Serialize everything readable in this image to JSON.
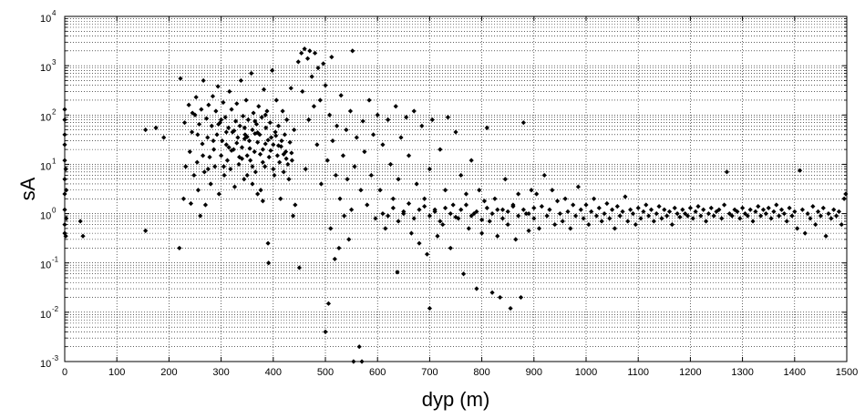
{
  "chart_data": {
    "type": "scatter",
    "title": "",
    "xlabel": "dyp (m)",
    "ylabel": "sA",
    "xlim": [
      0,
      1500
    ],
    "ylim": [
      0.001,
      10000
    ],
    "yscale": "log",
    "grid": "on (dotted, with log minor lines)",
    "marker": "black diamonds",
    "color": "#000000",
    "x_ticks": [
      "0",
      "100",
      "200",
      "300",
      "400",
      "500",
      "600",
      "700",
      "800",
      "900",
      "1000",
      "1100",
      "1200",
      "1300",
      "1400",
      "1500"
    ],
    "y_ticks": [
      {
        "base": "10",
        "exp": "-3",
        "value": 0.001
      },
      {
        "base": "10",
        "exp": "-2",
        "value": 0.01
      },
      {
        "base": "10",
        "exp": "-1",
        "value": 0.1
      },
      {
        "base": "10",
        "exp": "0",
        "value": 1
      },
      {
        "base": "10",
        "exp": "1",
        "value": 10
      },
      {
        "base": "10",
        "exp": "2",
        "value": 100
      },
      {
        "base": "10",
        "exp": "3",
        "value": 1000
      },
      {
        "base": "10",
        "exp": "4",
        "value": 10000
      }
    ],
    "points": [
      [
        0,
        0.4
      ],
      [
        0,
        0.6
      ],
      [
        0,
        1.2
      ],
      [
        0,
        2.5
      ],
      [
        0,
        5
      ],
      [
        0,
        12
      ],
      [
        0,
        25
      ],
      [
        0,
        40
      ],
      [
        0,
        80
      ],
      [
        0,
        130
      ],
      [
        2,
        0.35
      ],
      [
        3,
        0.8
      ],
      [
        3,
        3
      ],
      [
        2,
        8
      ],
      [
        30,
        0.7
      ],
      [
        35,
        0.35
      ],
      [
        155,
        50
      ],
      [
        175,
        55
      ],
      [
        155,
        0.45
      ],
      [
        190,
        35
      ],
      [
        220,
        0.2
      ],
      [
        222,
        550
      ],
      [
        228,
        2
      ],
      [
        230,
        70
      ],
      [
        232,
        9
      ],
      [
        238,
        160
      ],
      [
        240,
        18
      ],
      [
        242,
        1.6
      ],
      [
        244,
        45
      ],
      [
        248,
        6
      ],
      [
        250,
        100
      ],
      [
        252,
        230
      ],
      [
        254,
        11
      ],
      [
        256,
        3
      ],
      [
        258,
        65
      ],
      [
        260,
        0.9
      ],
      [
        262,
        130
      ],
      [
        264,
        26
      ],
      [
        266,
        500
      ],
      [
        268,
        7
      ],
      [
        270,
        1.5
      ],
      [
        272,
        85
      ],
      [
        274,
        35
      ],
      [
        276,
        160
      ],
      [
        278,
        14
      ],
      [
        280,
        4
      ],
      [
        282,
        60
      ],
      [
        284,
        240
      ],
      [
        286,
        20
      ],
      [
        288,
        9
      ],
      [
        290,
        120
      ],
      [
        292,
        40
      ],
      [
        294,
        380
      ],
      [
        296,
        2.5
      ],
      [
        298,
        70
      ],
      [
        300,
        15
      ],
      [
        302,
        30
      ],
      [
        304,
        180
      ],
      [
        306,
        6
      ],
      [
        308,
        90
      ],
      [
        310,
        25
      ],
      [
        312,
        12
      ],
      [
        314,
        55
      ],
      [
        316,
        300
      ],
      [
        318,
        8
      ],
      [
        320,
        130
      ],
      [
        322,
        45
      ],
      [
        324,
        20
      ],
      [
        326,
        3.5
      ],
      [
        328,
        75
      ],
      [
        330,
        170
      ],
      [
        332,
        35
      ],
      [
        334,
        10
      ],
      [
        336,
        60
      ],
      [
        338,
        500
      ],
      [
        340,
        22
      ],
      [
        342,
        95
      ],
      [
        344,
        5
      ],
      [
        346,
        40
      ],
      [
        348,
        200
      ],
      [
        350,
        15
      ],
      [
        352,
        80
      ],
      [
        354,
        30
      ],
      [
        356,
        12
      ],
      [
        358,
        700
      ],
      [
        360,
        50
      ],
      [
        362,
        110
      ],
      [
        364,
        18
      ],
      [
        366,
        7
      ],
      [
        368,
        65
      ],
      [
        370,
        28
      ],
      [
        372,
        150
      ],
      [
        374,
        40
      ],
      [
        376,
        3
      ],
      [
        378,
        90
      ],
      [
        380,
        20
      ],
      [
        382,
        330
      ],
      [
        384,
        9
      ],
      [
        386,
        55
      ],
      [
        388,
        120
      ],
      [
        390,
        0.25
      ],
      [
        391,
        0.1
      ],
      [
        392,
        14
      ],
      [
        394,
        70
      ],
      [
        396,
        35
      ],
      [
        398,
        800
      ],
      [
        400,
        25
      ],
      [
        402,
        6
      ],
      [
        404,
        45
      ],
      [
        406,
        200
      ],
      [
        408,
        15
      ],
      [
        410,
        60
      ],
      [
        412,
        11
      ],
      [
        414,
        2
      ],
      [
        416,
        30
      ],
      [
        418,
        120
      ],
      [
        420,
        7
      ],
      [
        422,
        40
      ],
      [
        424,
        18
      ],
      [
        426,
        80
      ],
      [
        428,
        10
      ],
      [
        430,
        5
      ],
      [
        432,
        28
      ],
      [
        434,
        350
      ],
      [
        436,
        12
      ],
      [
        438,
        0.9
      ],
      [
        440,
        50
      ],
      [
        442,
        1.5
      ],
      [
        245,
        110
      ],
      [
        255,
        40
      ],
      [
        265,
        15
      ],
      [
        275,
        8
      ],
      [
        285,
        30
      ],
      [
        295,
        65
      ],
      [
        305,
        9
      ],
      [
        315,
        22
      ],
      [
        325,
        48
      ],
      [
        335,
        14
      ],
      [
        345,
        33
      ],
      [
        355,
        21
      ],
      [
        365,
        42
      ],
      [
        375,
        16
      ],
      [
        385,
        26
      ],
      [
        395,
        19
      ],
      [
        405,
        38
      ],
      [
        415,
        23
      ],
      [
        425,
        13
      ],
      [
        435,
        17
      ],
      [
        300,
        80
      ],
      [
        310,
        45
      ],
      [
        320,
        19
      ],
      [
        330,
        27
      ],
      [
        340,
        13
      ],
      [
        350,
        36
      ],
      [
        360,
        9
      ],
      [
        370,
        44
      ],
      [
        380,
        11
      ],
      [
        390,
        31
      ],
      [
        400,
        8
      ],
      [
        410,
        24
      ],
      [
        420,
        16
      ],
      [
        350,
        6
      ],
      [
        360,
        4
      ],
      [
        370,
        2.5
      ],
      [
        380,
        1.8
      ],
      [
        345,
        55
      ],
      [
        365,
        75
      ],
      [
        385,
        100
      ],
      [
        448,
        1200
      ],
      [
        450,
        0.08
      ],
      [
        454,
        1800
      ],
      [
        456,
        300
      ],
      [
        460,
        2200
      ],
      [
        462,
        8
      ],
      [
        466,
        1400
      ],
      [
        468,
        80
      ],
      [
        470,
        2000
      ],
      [
        474,
        600
      ],
      [
        478,
        150
      ],
      [
        480,
        1800
      ],
      [
        484,
        25
      ],
      [
        486,
        900
      ],
      [
        490,
        200
      ],
      [
        492,
        4
      ],
      [
        496,
        1100
      ],
      [
        500,
        400
      ],
      [
        500,
        0.004
      ],
      [
        504,
        12
      ],
      [
        506,
        0.015
      ],
      [
        508,
        100
      ],
      [
        510,
        0.5
      ],
      [
        512,
        1500
      ],
      [
        514,
        30
      ],
      [
        518,
        0.12
      ],
      [
        520,
        6
      ],
      [
        522,
        60
      ],
      [
        526,
        0.2
      ],
      [
        528,
        2
      ],
      [
        530,
        250
      ],
      [
        534,
        15
      ],
      [
        536,
        0.9
      ],
      [
        540,
        50
      ],
      [
        542,
        5
      ],
      [
        545,
        0.3
      ],
      [
        548,
        120
      ],
      [
        550,
        1.2
      ],
      [
        552,
        2000
      ],
      [
        554,
        0.001
      ],
      [
        556,
        9
      ],
      [
        560,
        35
      ],
      [
        565,
        0.002
      ],
      [
        568,
        3
      ],
      [
        570,
        0.001
      ],
      [
        572,
        75
      ],
      [
        575,
        18
      ],
      [
        580,
        1.5
      ],
      [
        584,
        200
      ],
      [
        588,
        6
      ],
      [
        592,
        40
      ],
      [
        596,
        0.8
      ],
      [
        600,
        100
      ],
      [
        605,
        3
      ],
      [
        610,
        25
      ],
      [
        615,
        0.5
      ],
      [
        620,
        80
      ],
      [
        625,
        10
      ],
      [
        630,
        2
      ],
      [
        635,
        150
      ],
      [
        638,
        0.065
      ],
      [
        640,
        5
      ],
      [
        645,
        35
      ],
      [
        650,
        1
      ],
      [
        655,
        90
      ],
      [
        660,
        15
      ],
      [
        665,
        0.4
      ],
      [
        670,
        120
      ],
      [
        675,
        4
      ],
      [
        680,
        0.25
      ],
      [
        685,
        60
      ],
      [
        690,
        2
      ],
      [
        695,
        0.15
      ],
      [
        700,
        8
      ],
      [
        700,
        0.012
      ],
      [
        705,
        80
      ],
      [
        710,
        1.2
      ],
      [
        715,
        0.35
      ],
      [
        720,
        20
      ],
      [
        725,
        0.6
      ],
      [
        730,
        3
      ],
      [
        735,
        90
      ],
      [
        740,
        0.2
      ],
      [
        745,
        1.5
      ],
      [
        750,
        45
      ],
      [
        755,
        0.8
      ],
      [
        760,
        6
      ],
      [
        765,
        0.06
      ],
      [
        770,
        2.5
      ],
      [
        775,
        0.5
      ],
      [
        780,
        12
      ],
      [
        785,
        1
      ],
      [
        790,
        0.03
      ],
      [
        795,
        3
      ],
      [
        800,
        0.4
      ],
      [
        805,
        1.8
      ],
      [
        810,
        55
      ],
      [
        815,
        0.7
      ],
      [
        820,
        0.025
      ],
      [
        825,
        2
      ],
      [
        830,
        0.35
      ],
      [
        835,
        0.02
      ],
      [
        840,
        1.2
      ],
      [
        845,
        5
      ],
      [
        850,
        0.6
      ],
      [
        855,
        0.012
      ],
      [
        860,
        1.5
      ],
      [
        865,
        0.3
      ],
      [
        870,
        2.5
      ],
      [
        875,
        0.02
      ],
      [
        880,
        70
      ],
      [
        885,
        1
      ],
      [
        890,
        0.45
      ],
      [
        895,
        3
      ],
      [
        610,
        1
      ],
      [
        620,
        0.9
      ],
      [
        630,
        1.3
      ],
      [
        640,
        0.7
      ],
      [
        650,
        1.1
      ],
      [
        660,
        1.6
      ],
      [
        670,
        0.8
      ],
      [
        680,
        1.2
      ],
      [
        690,
        1.4
      ],
      [
        700,
        0.9
      ],
      [
        710,
        1.1
      ],
      [
        720,
        0.7
      ],
      [
        730,
        1.3
      ],
      [
        740,
        1
      ],
      [
        750,
        0.85
      ],
      [
        760,
        1.2
      ],
      [
        770,
        1.5
      ],
      [
        780,
        0.9
      ],
      [
        790,
        1.1
      ],
      [
        800,
        0.75
      ],
      [
        810,
        1.3
      ],
      [
        820,
        1
      ],
      [
        830,
        1.2
      ],
      [
        840,
        0.8
      ],
      [
        850,
        1.1
      ],
      [
        860,
        1.4
      ],
      [
        870,
        0.9
      ],
      [
        880,
        1.2
      ],
      [
        890,
        1
      ],
      [
        900,
        1.3
      ],
      [
        900,
        0.8
      ],
      [
        905,
        2.5
      ],
      [
        910,
        0.5
      ],
      [
        915,
        1.4
      ],
      [
        920,
        6
      ],
      [
        925,
        0.9
      ],
      [
        930,
        1.2
      ],
      [
        935,
        3
      ],
      [
        940,
        0.6
      ],
      [
        945,
        1.8
      ],
      [
        950,
        1
      ],
      [
        955,
        0.7
      ],
      [
        960,
        2
      ],
      [
        965,
        1.1
      ],
      [
        970,
        0.5
      ],
      [
        975,
        1.5
      ],
      [
        980,
        0.9
      ],
      [
        985,
        3.5
      ],
      [
        990,
        1.2
      ],
      [
        995,
        0.8
      ],
      [
        1000,
        1.5
      ],
      [
        1005,
        0.6
      ],
      [
        1010,
        1.1
      ],
      [
        1015,
        2
      ],
      [
        1020,
        0.9
      ],
      [
        1025,
        1.3
      ],
      [
        1030,
        0.7
      ],
      [
        1035,
        1
      ],
      [
        1040,
        1.6
      ],
      [
        1045,
        0.8
      ],
      [
        1050,
        1.2
      ],
      [
        1055,
        0.5
      ],
      [
        1060,
        1.4
      ],
      [
        1065,
        0.9
      ],
      [
        1070,
        1.1
      ],
      [
        1075,
        2.2
      ],
      [
        1080,
        0.7
      ],
      [
        1085,
        1.2
      ],
      [
        1090,
        1
      ],
      [
        1095,
        0.6
      ],
      [
        1100,
        1.3
      ],
      [
        1105,
        0.8
      ],
      [
        1110,
        1.1
      ],
      [
        1115,
        1.5
      ],
      [
        1120,
        0.9
      ],
      [
        1125,
        1.2
      ],
      [
        1130,
        0.7
      ],
      [
        1135,
        1
      ],
      [
        1140,
        1.4
      ],
      [
        1145,
        0.8
      ],
      [
        1150,
        1.2
      ],
      [
        1155,
        0.9
      ],
      [
        1160,
        1.1
      ],
      [
        1165,
        0.6
      ],
      [
        1170,
        1.3
      ],
      [
        1175,
        1
      ],
      [
        1180,
        0.85
      ],
      [
        1185,
        1.2
      ],
      [
        1190,
        1
      ],
      [
        1195,
        0.9
      ],
      [
        1200,
        1.3
      ],
      [
        1205,
        0.8
      ],
      [
        1210,
        1.1
      ],
      [
        1215,
        1.4
      ],
      [
        1220,
        0.9
      ],
      [
        1225,
        1.2
      ],
      [
        1230,
        0.7
      ],
      [
        1235,
        1
      ],
      [
        1240,
        1.3
      ],
      [
        1245,
        0.9
      ],
      [
        1250,
        1.1
      ],
      [
        1255,
        1.2
      ],
      [
        1260,
        0.8
      ],
      [
        1265,
        1.5
      ],
      [
        1270,
        7
      ],
      [
        1275,
        1
      ],
      [
        1280,
        0.9
      ],
      [
        1285,
        1.2
      ],
      [
        1290,
        1.1
      ],
      [
        1295,
        0.8
      ],
      [
        1300,
        1.3
      ],
      [
        1305,
        1
      ],
      [
        1310,
        0.9
      ],
      [
        1315,
        1.2
      ],
      [
        1320,
        0.7
      ],
      [
        1325,
        1.1
      ],
      [
        1330,
        1.4
      ],
      [
        1335,
        0.9
      ],
      [
        1340,
        1.2
      ],
      [
        1345,
        1
      ],
      [
        1350,
        1.3
      ],
      [
        1355,
        0.8
      ],
      [
        1360,
        1.1
      ],
      [
        1365,
        1.5
      ],
      [
        1370,
        0.9
      ],
      [
        1375,
        1.2
      ],
      [
        1380,
        1
      ],
      [
        1385,
        0.7
      ],
      [
        1390,
        1.3
      ],
      [
        1395,
        0.9
      ],
      [
        1400,
        1.1
      ],
      [
        1405,
        0.5
      ],
      [
        1410,
        7.5
      ],
      [
        1415,
        1.2
      ],
      [
        1420,
        0.4
      ],
      [
        1425,
        1
      ],
      [
        1430,
        0.8
      ],
      [
        1435,
        1.4
      ],
      [
        1440,
        0.6
      ],
      [
        1445,
        1.1
      ],
      [
        1450,
        0.9
      ],
      [
        1455,
        1.3
      ],
      [
        1460,
        0.35
      ],
      [
        1465,
        1
      ],
      [
        1470,
        0.8
      ],
      [
        1475,
        1.2
      ],
      [
        1480,
        0.9
      ],
      [
        1485,
        1.1
      ],
      [
        1490,
        0.6
      ],
      [
        1495,
        2
      ],
      [
        1498,
        2.5
      ]
    ]
  }
}
